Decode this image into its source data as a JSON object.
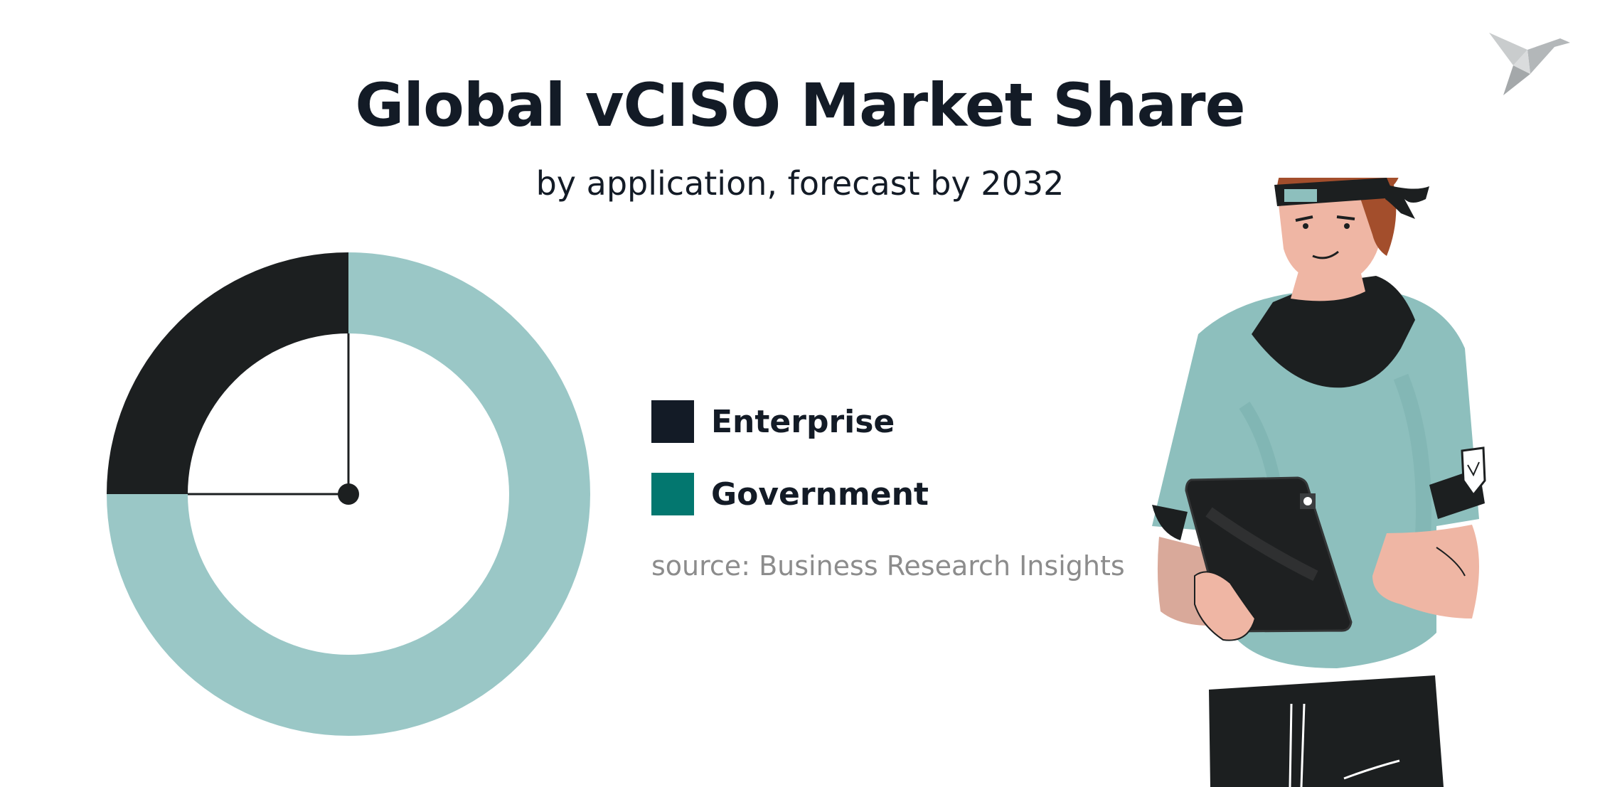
{
  "title": "Global vCISO Market Share",
  "subtitle": "by application, forecast by 2032",
  "source": "source: Business Research Insights",
  "colors": {
    "enterprise": "#1c1f20",
    "government": "#9ac7c6",
    "government_legend": "#03776f",
    "enterprise_legend": "#131b26",
    "title": "#131b26",
    "source": "#8c8c8c"
  },
  "icons": {
    "logo": "origami-bird-icon",
    "illustration": "person-with-tablet-illustration"
  },
  "chart_data": {
    "type": "pie",
    "variant": "donut",
    "categories": [
      "Enterprise",
      "Government"
    ],
    "values": [
      25,
      75
    ],
    "unit": "%",
    "legend": "right",
    "title": "Global vCISO Market Share",
    "subtitle": "by application, forecast by 2032"
  }
}
